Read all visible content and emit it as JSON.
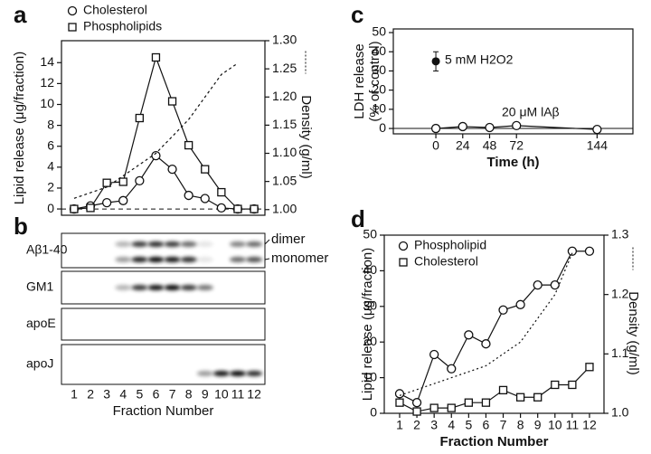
{
  "chart_data": [
    {
      "type": "line",
      "label": "a",
      "legend": true,
      "ylabel": "Lipid release (μg/fraction)",
      "y2label": "Density (g/ml)",
      "xlim": [
        0.23,
        12.66
      ],
      "ylim": [
        -0.6,
        16.1
      ],
      "yticks": [
        0,
        2,
        4,
        6,
        8,
        10,
        12,
        14
      ],
      "y2lim": [
        0.99,
        1.3
      ],
      "y2ticks": [
        {
          "value": 1.0,
          "label": "1.00"
        },
        1.05,
        {
          "value": 1.1,
          "label": "1.10"
        },
        1.15,
        {
          "value": 1.2,
          "label": "1.20"
        },
        1.25,
        {
          "value": 1.3,
          "label": "1.30"
        }
      ],
      "zero_line": true,
      "series": [
        {
          "name": "Cholesterol",
          "marker": "circle",
          "x": [
            1,
            2,
            3,
            4,
            5,
            6,
            7,
            8,
            9,
            10,
            11,
            12
          ],
          "values": [
            0,
            0.3,
            0.6,
            0.8,
            2.7,
            5.1,
            3.8,
            1.3,
            1.0,
            0.1,
            0,
            0
          ]
        },
        {
          "name": "Phospholipids",
          "marker": "square",
          "x": [
            1,
            2,
            3,
            4,
            5,
            6,
            7,
            8,
            9,
            10,
            11,
            12
          ],
          "values": [
            0,
            0.1,
            2.5,
            2.6,
            8.7,
            14.5,
            10.3,
            6.1,
            3.8,
            1.6,
            0,
            0
          ]
        },
        {
          "marker": "none",
          "dash": "3,3",
          "axis": "y2",
          "x": [
            1,
            2,
            3,
            4,
            5,
            6,
            7,
            8,
            9,
            10,
            11
          ],
          "values": [
            1.02,
            1.03,
            1.04,
            1.06,
            1.08,
            1.1,
            1.13,
            1.16,
            1.2,
            1.24,
            1.26
          ]
        }
      ]
    },
    {
      "type": "blot",
      "label": "b",
      "rows": [
        "Aβ1-40",
        "GM1",
        "apoE",
        "apoJ"
      ],
      "bands": [
        "dimer",
        "monomer"
      ],
      "categories": [
        "1",
        "2",
        "3",
        "4",
        "5",
        "6",
        "7",
        "8",
        "9",
        "10",
        "11",
        "12"
      ],
      "xlabel": "Fraction Number"
    },
    {
      "type": "line",
      "label": "c",
      "series_labels": true,
      "ylabel": [
        "LDH release",
        "(% of control)"
      ],
      "xlabel": "Time (h)",
      "xlim": [
        -38,
        176
      ],
      "xticks": [
        0,
        24,
        48,
        72,
        144
      ],
      "ylim": [
        -2.8,
        51.9
      ],
      "yticks": [
        0,
        10,
        20,
        30,
        40,
        50
      ],
      "zero_line": true,
      "series": [
        {
          "name": "20 μM lAβ",
          "marker": "circle",
          "x": [
            0,
            24,
            48,
            72,
            144
          ],
          "values": [
            0,
            1,
            0.5,
            1.5,
            -0.5
          ]
        },
        {
          "name": "5 mM H2O2",
          "marker": "filled",
          "x": [
            0
          ],
          "values": [
            35
          ],
          "errors": [
            5
          ]
        }
      ]
    },
    {
      "type": "line",
      "label": "d",
      "legend": true,
      "ylabel": "Lipid release (μg/fraction)",
      "y2label": "Density (g/ml)",
      "xlabel": "Fraction Number",
      "xlim": [
        0.11,
        12.84
      ],
      "xticks": [
        1,
        2,
        3,
        4,
        5,
        6,
        7,
        8,
        9,
        10,
        11,
        12
      ],
      "ylim": [
        0,
        50
      ],
      "yticks": [
        0,
        10,
        20,
        30,
        40,
        50
      ],
      "y2lim": [
        1.0,
        1.3
      ],
      "y2ticks": [
        {
          "value": 1.0,
          "label": "1.0"
        },
        1.1,
        1.2,
        1.3
      ],
      "series": [
        {
          "name": "Phospholipid",
          "marker": "circle",
          "x": [
            1,
            2,
            3,
            4,
            5,
            6,
            7,
            8,
            9,
            10,
            11,
            12
          ],
          "values": [
            5.5,
            3,
            16.5,
            12.5,
            22,
            19.5,
            29,
            30.5,
            36,
            36,
            45.5,
            45.5
          ]
        },
        {
          "name": "Cholesterol",
          "marker": "square",
          "x": [
            1,
            2,
            3,
            4,
            5,
            6,
            7,
            8,
            9,
            10,
            11,
            12
          ],
          "values": [
            3,
            0.5,
            1.5,
            1.5,
            3,
            3,
            6.5,
            4.5,
            4.5,
            8,
            8,
            13
          ]
        },
        {
          "marker": "none",
          "dash": "2,3",
          "axis": "y2",
          "x": [
            1,
            2,
            3,
            4,
            5,
            6,
            7,
            8,
            9,
            10,
            11
          ],
          "values": [
            1.03,
            1.04,
            1.05,
            1.06,
            1.07,
            1.08,
            1.1,
            1.12,
            1.16,
            1.2,
            1.27
          ]
        }
      ]
    }
  ]
}
